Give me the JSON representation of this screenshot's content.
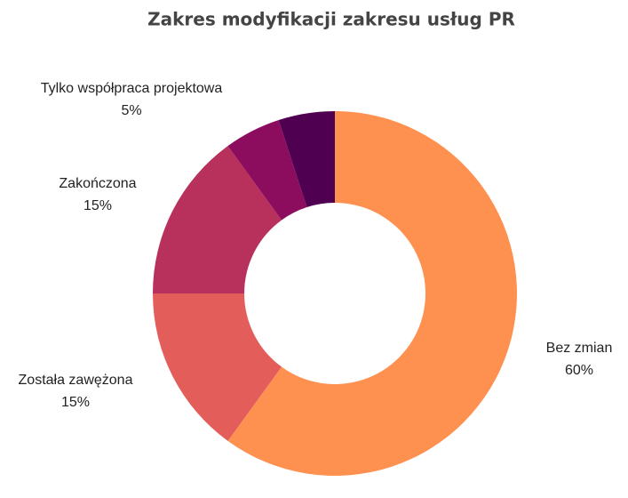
{
  "chart_data": {
    "type": "donut",
    "title": "Zakres modyfikacji zakresu usług PR",
    "categories": [
      "Bez zmian",
      "Została zawężona",
      "Zakończona",
      "Tylko współpraca projektowa",
      null
    ],
    "values": [
      60,
      15,
      15,
      5,
      5
    ],
    "value_labels": [
      "60%",
      "15%",
      "15%",
      "5%",
      null
    ],
    "colors": [
      "#ff9150",
      "#e35d5a",
      "#b8305c",
      "#8c0c5e",
      "#4f0051"
    ]
  }
}
